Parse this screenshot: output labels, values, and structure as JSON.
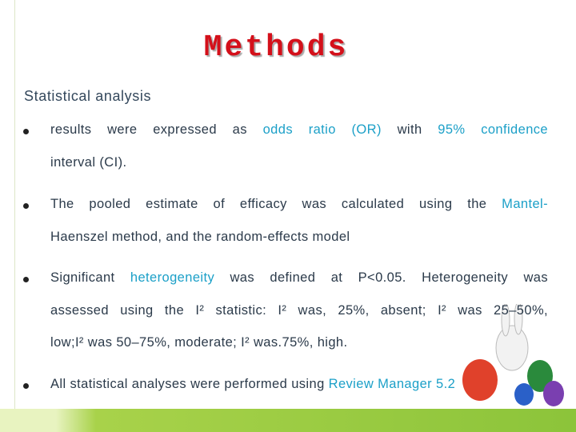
{
  "title": "Methods",
  "subtitle": "Statistical analysis",
  "bullets": [
    {
      "lines": [
        [
          {
            "text": "results were expressed as ",
            "color": "#2b3a4a"
          },
          {
            "text": "odds ratio (OR)",
            "color": "#1ca0c8"
          },
          {
            "text": " with ",
            "color": "#2b3a4a"
          },
          {
            "text": "95% confidence",
            "color": "#1ca0c8"
          }
        ],
        [
          {
            "text": "interval (CI).",
            "color": "#2b3a4a"
          }
        ]
      ]
    },
    {
      "lines": [
        [
          {
            "text": "The pooled estimate of efficacy was calculated using the ",
            "color": "#2b3a4a"
          },
          {
            "text": "Mantel-",
            "color": "#1ca0c8"
          }
        ],
        [
          {
            "text": "Haenszel method, and the random-effects model",
            "color": "#2b3a4a"
          }
        ]
      ]
    },
    {
      "lines": [
        [
          {
            "text": "Significant ",
            "color": "#2b3a4a"
          },
          {
            "text": "heterogeneity",
            "color": "#1ca0c8"
          },
          {
            "text": " was defined at P<0.05. Heterogeneity was",
            "color": "#2b3a4a"
          }
        ],
        [
          {
            "text": "assessed using the I² statistic: I² was, 25%, absent; I² was 25–50%,",
            "color": "#2b3a4a"
          }
        ],
        [
          {
            "text": "low;I² was 50–75%, moderate;  I² was.75%, high.",
            "color": "#2b3a4a"
          }
        ]
      ]
    },
    {
      "lines": [
        [
          {
            "text": "All statistical analyses were performed using ",
            "color": "#2b3a4a"
          },
          {
            "text": "Review Manager 5.2",
            "color": "#1ca0c8"
          }
        ]
      ]
    }
  ]
}
